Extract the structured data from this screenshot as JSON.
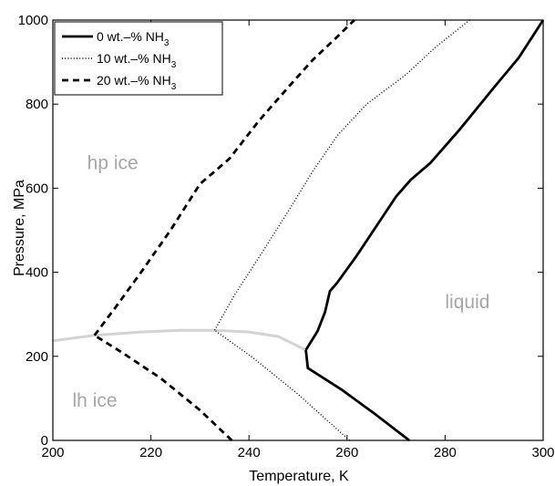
{
  "chart_data": {
    "type": "line",
    "xlabel": "Temperature, K",
    "ylabel": "Pressure, MPa",
    "xlim": [
      200,
      300
    ],
    "ylim": [
      0,
      1000
    ],
    "xticks": [
      200,
      220,
      240,
      260,
      280,
      300
    ],
    "yticks": [
      0,
      200,
      400,
      600,
      800,
      1000
    ],
    "grid": false,
    "legend_position": "top-left",
    "series": [
      {
        "name": "0 wt.–% NH",
        "name_subscript": "3",
        "style": "solid",
        "color": "#000000",
        "segments": [
          [
            [
              272.7,
              0
            ],
            [
              266,
              60
            ],
            [
              259,
              120
            ],
            [
              252,
              172
            ],
            [
              251.6,
              215
            ]
          ],
          [
            [
              251.6,
              215
            ],
            [
              254,
              260
            ],
            [
              255.5,
              305
            ],
            [
              256.5,
              355
            ],
            [
              258,
              375
            ],
            [
              262,
              440
            ],
            [
              266,
              510
            ],
            [
              270,
              580
            ],
            [
              273,
              620
            ],
            [
              277,
              660
            ],
            [
              283,
              740
            ],
            [
              290,
              840
            ],
            [
              295,
              910
            ],
            [
              300,
              1000
            ]
          ]
        ]
      },
      {
        "name": "10 wt.–% NH",
        "name_subscript": "3",
        "style": "dotted",
        "color": "#000000",
        "segments": [
          [
            [
              260.5,
              0
            ],
            [
              250,
              110
            ],
            [
              241,
              195
            ],
            [
              233,
              262
            ]
          ],
          [
            [
              233,
              262
            ],
            [
              237,
              345
            ],
            [
              242,
              435
            ],
            [
              248,
              545
            ],
            [
              253,
              640
            ],
            [
              258,
              725
            ],
            [
              264,
              800
            ],
            [
              272,
              870
            ],
            [
              278,
              935
            ],
            [
              285,
              1000
            ]
          ]
        ]
      },
      {
        "name": "20 wt.–% NH",
        "name_subscript": "3",
        "style": "dashed",
        "color": "#000000",
        "segments": [
          [
            [
              236.5,
              0
            ],
            [
              230,
              72
            ],
            [
              222,
              148
            ],
            [
              214,
              210
            ],
            [
              208.5,
              250
            ]
          ],
          [
            [
              208.5,
              250
            ],
            [
              213,
              320
            ],
            [
              218,
              400
            ],
            [
              224,
              500
            ],
            [
              230,
              610
            ],
            [
              236,
              670
            ],
            [
              242,
              760
            ],
            [
              248,
              840
            ],
            [
              253,
              905
            ],
            [
              258,
              960
            ],
            [
              261.5,
              1000
            ]
          ]
        ]
      },
      {
        "name": "",
        "style": "solid",
        "color": "#d3d3d3",
        "segments": [
          [
            [
              200,
              237
            ],
            [
              208.5,
              250
            ],
            [
              218,
              258
            ],
            [
              226,
              262
            ],
            [
              233,
              262
            ],
            [
              240,
              258
            ],
            [
              246,
              247
            ],
            [
              251.6,
              215
            ]
          ]
        ]
      }
    ],
    "annotations": [
      {
        "text": "hp ice",
        "x": 207,
        "y": 645
      },
      {
        "text": "liquid",
        "x": 280,
        "y": 315
      },
      {
        "text": "lh ice",
        "x": 204,
        "y": 80
      }
    ]
  }
}
